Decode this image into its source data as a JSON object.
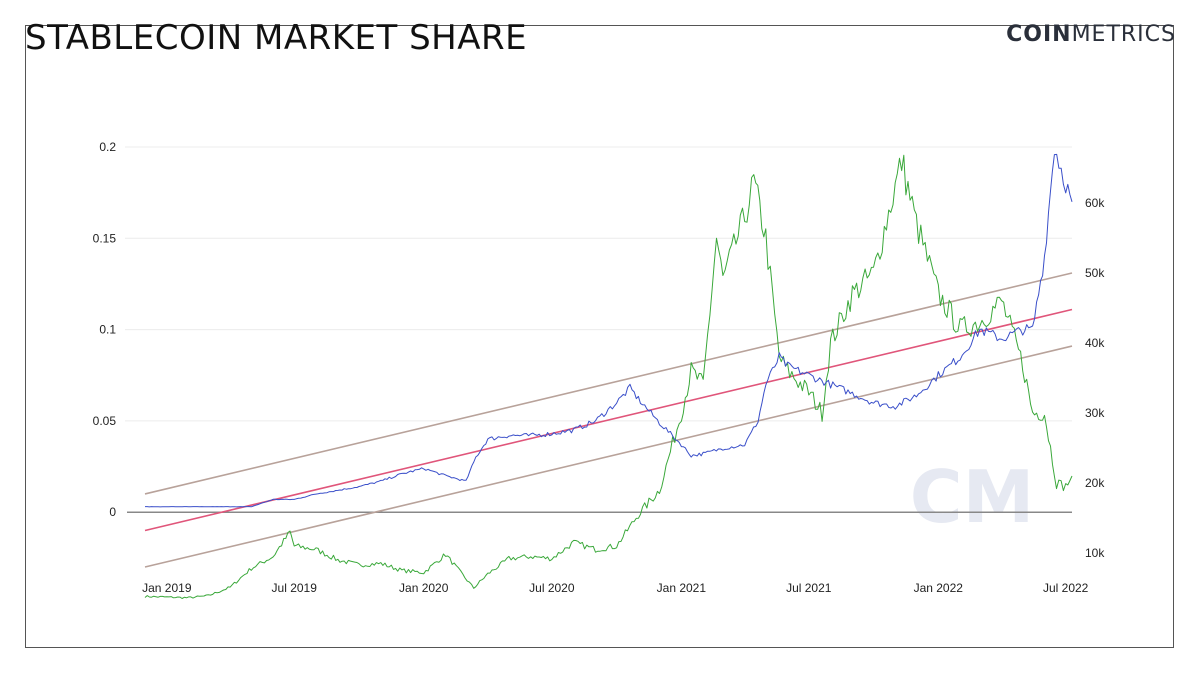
{
  "header": {
    "title": "STABLECOIN MARKET SHARE",
    "logo_bold": "COIN",
    "logo_light": "METRICS",
    "watermark": "CM"
  },
  "colors": {
    "market_share": "#3a4fc9",
    "bitcoin_price": "#3aa83a",
    "regression": "#e0557a",
    "band": "#b8a29a",
    "zero_line": "#888888",
    "grid": "#ececec"
  },
  "chart_data": {
    "type": "line",
    "x_ticks": [
      "Jan 2019",
      "Jul 2019",
      "Jan 2020",
      "Jul 2020",
      "Jan 2021",
      "Jul 2021",
      "Jan 2022",
      "Jul 2022"
    ],
    "x_range": [
      "2018-12-01",
      "2022-07-10"
    ],
    "y_left": {
      "ticks": [
        "0",
        "0.05",
        "0.1",
        "0.15",
        "0.2"
      ],
      "range": [
        -0.03,
        0.2
      ]
    },
    "y_right": {
      "ticks": [
        "10k",
        "20k",
        "30k",
        "40k",
        "50k",
        "60k"
      ],
      "range": [
        8000,
        68000
      ]
    },
    "grid": true,
    "series": [
      {
        "axis": "left",
        "x": [
          "2018-12-01",
          "2019-01-01",
          "2019-02-01",
          "2019-03-01",
          "2019-04-01",
          "2019-05-01",
          "2019-06-01",
          "2019-07-01",
          "2019-08-01",
          "2019-09-01",
          "2019-10-01",
          "2019-11-01",
          "2019-12-01",
          "2020-01-01",
          "2020-02-01",
          "2020-03-01",
          "2020-03-15",
          "2020-04-01",
          "2020-05-01",
          "2020-06-01",
          "2020-07-01",
          "2020-08-01",
          "2020-09-01",
          "2020-10-01",
          "2020-10-20",
          "2020-11-01",
          "2020-12-01",
          "2021-01-01",
          "2021-01-15",
          "2021-02-01",
          "2021-03-01",
          "2021-04-01",
          "2021-04-20",
          "2021-05-01",
          "2021-05-20",
          "2021-06-01",
          "2021-07-01",
          "2021-08-01",
          "2021-09-01",
          "2021-10-01",
          "2021-11-01",
          "2021-12-01",
          "2022-01-01",
          "2022-02-01",
          "2022-03-01",
          "2022-04-01",
          "2022-05-01",
          "2022-05-15",
          "2022-06-01",
          "2022-06-15",
          "2022-07-01",
          "2022-07-10"
        ],
        "values": [
          0.003,
          0.003,
          0.003,
          0.003,
          0.003,
          0.003,
          0.007,
          0.007,
          0.01,
          0.012,
          0.014,
          0.017,
          0.021,
          0.024,
          0.02,
          0.017,
          0.03,
          0.04,
          0.042,
          0.042,
          0.043,
          0.045,
          0.05,
          0.06,
          0.068,
          0.062,
          0.049,
          0.037,
          0.031,
          0.032,
          0.035,
          0.037,
          0.05,
          0.07,
          0.085,
          0.08,
          0.075,
          0.07,
          0.065,
          0.06,
          0.058,
          0.064,
          0.075,
          0.085,
          0.1,
          0.095,
          0.1,
          0.1,
          0.14,
          0.2,
          0.18,
          0.17
        ]
      },
      {
        "axis": "right",
        "x": [
          "2018-12-01",
          "2019-01-01",
          "2019-02-01",
          "2019-03-01",
          "2019-04-01",
          "2019-05-01",
          "2019-06-01",
          "2019-06-25",
          "2019-07-01",
          "2019-08-01",
          "2019-09-01",
          "2019-10-01",
          "2019-11-01",
          "2019-12-01",
          "2020-01-01",
          "2020-02-01",
          "2020-03-12",
          "2020-04-01",
          "2020-05-01",
          "2020-06-01",
          "2020-07-01",
          "2020-08-01",
          "2020-09-01",
          "2020-10-01",
          "2020-11-01",
          "2020-12-01",
          "2021-01-01",
          "2021-01-15",
          "2021-02-01",
          "2021-02-20",
          "2021-03-01",
          "2021-04-01",
          "2021-04-14",
          "2021-05-01",
          "2021-05-20",
          "2021-06-01",
          "2021-07-01",
          "2021-07-20",
          "2021-08-01",
          "2021-09-01",
          "2021-10-01",
          "2021-11-10",
          "2021-12-01",
          "2022-01-01",
          "2022-02-01",
          "2022-03-01",
          "2022-04-01",
          "2022-05-01",
          "2022-05-15",
          "2022-06-01",
          "2022-06-18",
          "2022-07-01",
          "2022-07-10"
        ],
        "values": [
          3800,
          3700,
          3600,
          3900,
          5100,
          7800,
          9500,
          13000,
          11000,
          10500,
          9000,
          8300,
          8500,
          7500,
          7200,
          9800,
          5000,
          7000,
          9200,
          9500,
          9200,
          11500,
          10500,
          11000,
          15500,
          19000,
          30000,
          36000,
          34000,
          55000,
          49000,
          58000,
          63000,
          55000,
          38000,
          36000,
          33000,
          30000,
          40000,
          47000,
          50000,
          66000,
          57000,
          47000,
          42000,
          43000,
          46000,
          37000,
          30000,
          30000,
          20000,
          19500,
          21000
        ]
      }
    ],
    "trend_lines": [
      {
        "name": "",
        "points": [
          [
            "2018-12-01",
            0.01
          ],
          [
            "2022-07-10",
            0.131
          ]
        ]
      },
      {
        "name": "",
        "points": [
          [
            "2018-12-01",
            -0.01
          ],
          [
            "2022-07-10",
            0.111
          ]
        ]
      },
      {
        "name": "",
        "points": [
          [
            "2018-12-01",
            -0.03
          ],
          [
            "2022-07-10",
            0.091
          ]
        ]
      }
    ],
    "reference_lines": [
      {
        "axis": "left",
        "y": 0
      }
    ]
  }
}
